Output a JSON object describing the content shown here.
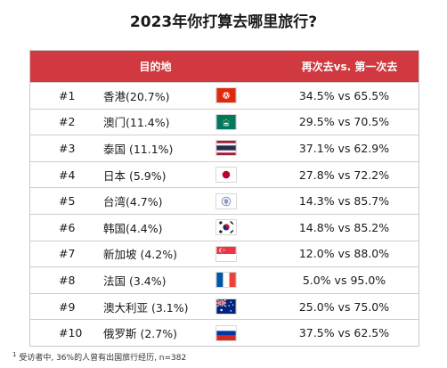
{
  "title": "2023年你打算去哪里旅行?",
  "header": {
    "destination": "目的地",
    "ratio": "再次去vs. 第一次去"
  },
  "rows": [
    {
      "rank": "#1",
      "name": "香港(20.7%)",
      "ratio": "34.5% vs 65.5%",
      "flag": "hong-kong-flag-icon"
    },
    {
      "rank": "#2",
      "name": "澳门(11.4%)",
      "ratio": "29.5% vs 70.5%",
      "flag": "macau-flag-icon"
    },
    {
      "rank": "#3",
      "name": "泰国 (11.1%)",
      "ratio": "37.1% vs 62.9%",
      "flag": "thailand-flag-icon"
    },
    {
      "rank": "#4",
      "name": "日本 (5.9%)",
      "ratio": "27.8% vs 72.2%",
      "flag": "japan-flag-icon"
    },
    {
      "rank": "#5",
      "name": "台湾(4.7%)",
      "ratio": "14.3% vs 85.7%",
      "flag": "taiwan-emblem-icon"
    },
    {
      "rank": "#6",
      "name": "韩国(4.4%)",
      "ratio": "14.8% vs 85.2%",
      "flag": "korea-flag-icon"
    },
    {
      "rank": "#7",
      "name": "新加坡 (4.2%)",
      "ratio": "12.0% vs 88.0%",
      "flag": "singapore-flag-icon"
    },
    {
      "rank": "#8",
      "name": "法国 (3.4%)",
      "ratio": "5.0% vs 95.0%",
      "flag": "france-flag-icon"
    },
    {
      "rank": "#9",
      "name": "澳大利亚 (3.1%)",
      "ratio": "25.0% vs 75.0%",
      "flag": "australia-flag-icon"
    },
    {
      "rank": "#10",
      "name": "俄罗斯 (2.7%)",
      "ratio": "37.5% vs 62.5%",
      "flag": "russia-flag-icon"
    }
  ],
  "footnote": {
    "marker": "1",
    "text": "受访者中, 36%的人曾有出国旅行经历, n=382"
  },
  "colors": {
    "header_bg": "#d0393f"
  }
}
